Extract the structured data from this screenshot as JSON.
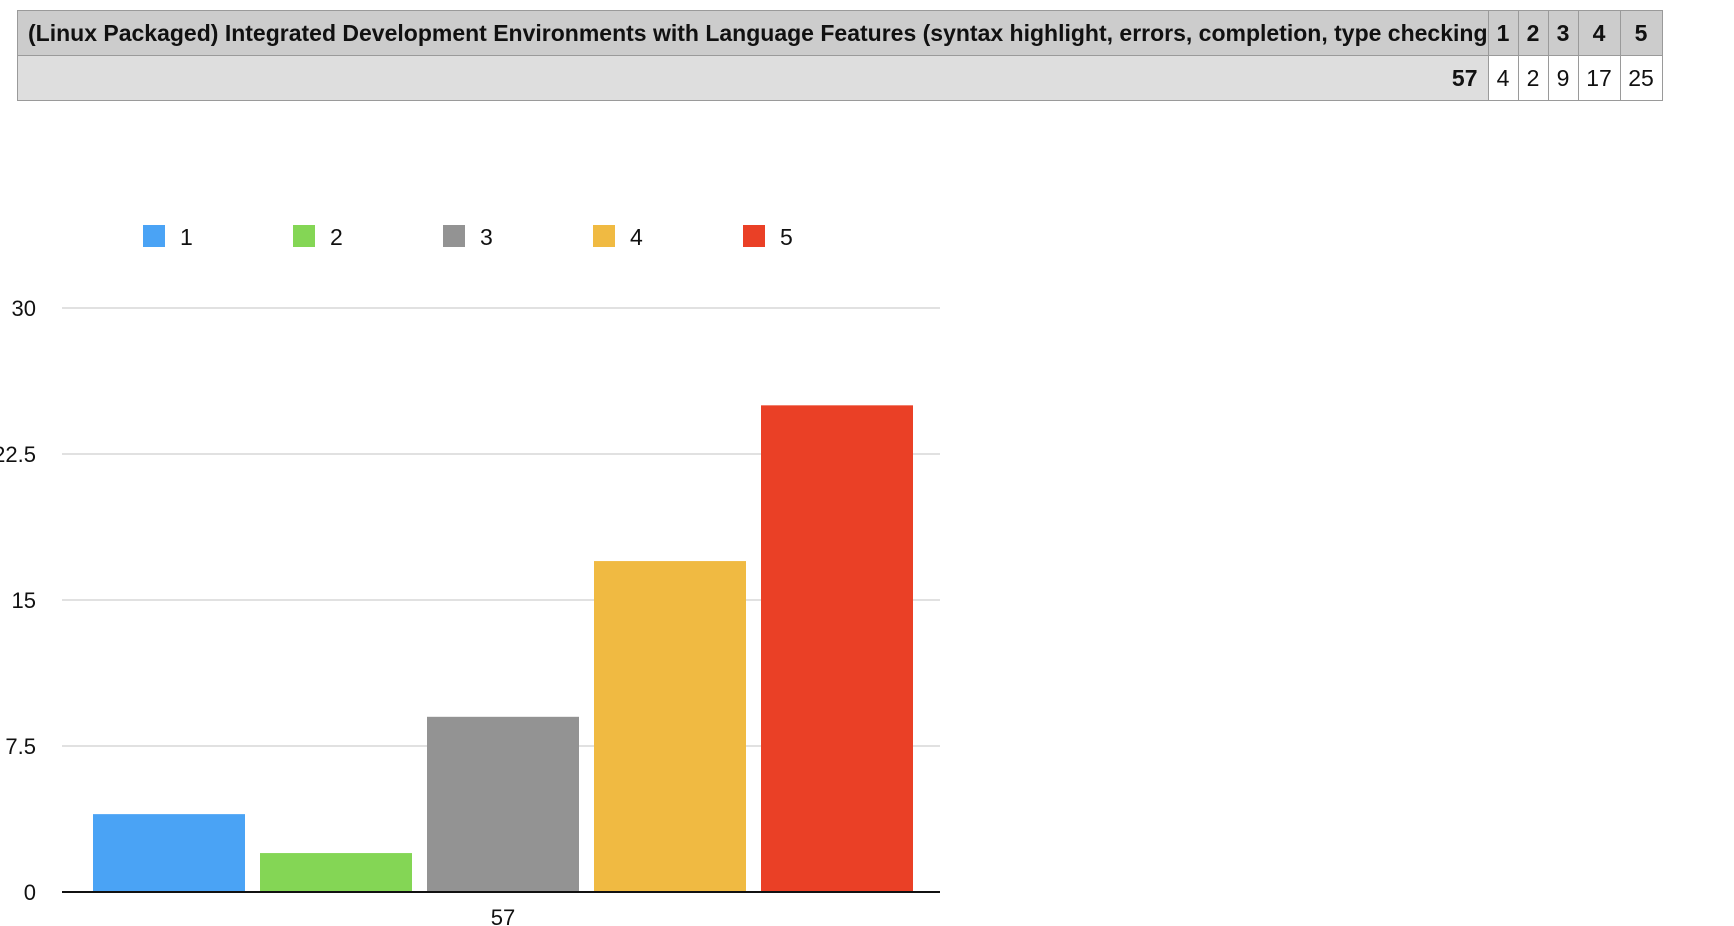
{
  "table": {
    "title": "(Linux Packaged) Integrated Development Environments with Language Features (syntax highlight, errors, completion, type checking",
    "column_headers": [
      "1",
      "2",
      "3",
      "4",
      "5"
    ],
    "row_label": "57",
    "row_values": [
      "4",
      "2",
      "9",
      "17",
      "25"
    ]
  },
  "chart_data": {
    "type": "bar",
    "categories": [
      "57"
    ],
    "series": [
      {
        "name": "1",
        "values": [
          4
        ],
        "color": "#4aa3f5"
      },
      {
        "name": "2",
        "values": [
          2
        ],
        "color": "#84d655"
      },
      {
        "name": "3",
        "values": [
          9
        ],
        "color": "#939393"
      },
      {
        "name": "4",
        "values": [
          17
        ],
        "color": "#f0ba42"
      },
      {
        "name": "5",
        "values": [
          25
        ],
        "color": "#ea4026"
      }
    ],
    "ylim": [
      0,
      30
    ],
    "yticks": [
      "0",
      "7.5",
      "15",
      "22.5",
      "30"
    ],
    "grid": true,
    "legend": "top"
  }
}
